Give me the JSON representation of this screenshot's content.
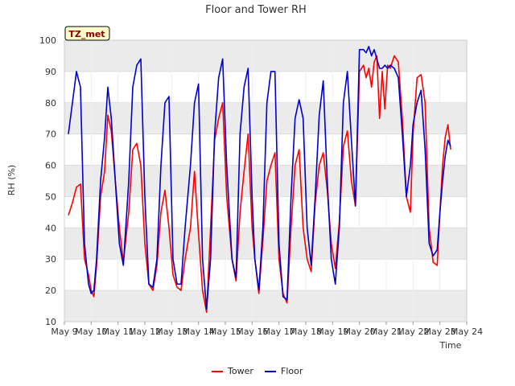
{
  "chart_data": {
    "type": "line",
    "title": "Floor and Tower RH",
    "xlabel": "Time",
    "ylabel": "RH (%)",
    "ylim": [
      10,
      100
    ],
    "y_ticks": [
      10,
      20,
      30,
      40,
      50,
      60,
      70,
      80,
      90,
      100
    ],
    "x_range_days": [
      0,
      15
    ],
    "x_ticks": [
      "May 9",
      "May 10",
      "May 11",
      "May 12",
      "May 13",
      "May 14",
      "May 15",
      "May 16",
      "May 17",
      "May 18",
      "May 19",
      "May 20",
      "May 21",
      "May 22",
      "May 23",
      "May 24"
    ],
    "grid": true,
    "legend_position": "bottom-center",
    "annotation": "TZ_met",
    "colors": {
      "Tower": "#ff0000",
      "Floor": "#0000cc",
      "band": "#ebebeb"
    },
    "series": [
      {
        "name": "Tower",
        "color": "#ff0000",
        "x": [
          0.15,
          0.3,
          0.45,
          0.6,
          0.75,
          0.9,
          1.0,
          1.1,
          1.2,
          1.35,
          1.5,
          1.62,
          1.75,
          1.9,
          2.05,
          2.2,
          2.4,
          2.55,
          2.7,
          2.85,
          3.0,
          3.15,
          3.3,
          3.45,
          3.6,
          3.75,
          3.9,
          4.05,
          4.2,
          4.35,
          4.5,
          4.7,
          4.85,
          5.0,
          5.15,
          5.3,
          5.45,
          5.6,
          5.75,
          5.9,
          6.05,
          6.25,
          6.4,
          6.55,
          6.7,
          6.85,
          7.0,
          7.1,
          7.25,
          7.4,
          7.55,
          7.7,
          7.85,
          8.0,
          8.15,
          8.3,
          8.45,
          8.6,
          8.75,
          8.9,
          9.05,
          9.2,
          9.35,
          9.5,
          9.65,
          9.8,
          9.95,
          10.1,
          10.25,
          10.4,
          10.55,
          10.7,
          10.85,
          11.0,
          11.15,
          11.25,
          11.35,
          11.45,
          11.55,
          11.65,
          11.75,
          11.85,
          11.95,
          12.05,
          12.15,
          12.3,
          12.45,
          12.6,
          12.75,
          12.9,
          13.0,
          13.15,
          13.3,
          13.45,
          13.6,
          13.75,
          13.9,
          14.0,
          14.1,
          14.2,
          14.3,
          14.4
        ],
        "values": [
          44,
          48,
          53,
          54,
          30,
          25,
          20,
          18,
          28,
          50,
          58,
          76,
          71,
          55,
          40,
          29,
          45,
          65,
          67,
          60,
          35,
          22,
          20,
          28,
          45,
          52,
          40,
          25,
          21,
          20,
          30,
          40,
          58,
          38,
          20,
          13,
          40,
          68,
          75,
          80,
          50,
          30,
          23,
          45,
          58,
          70,
          40,
          30,
          19,
          36,
          55,
          60,
          64,
          30,
          19,
          16,
          40,
          60,
          65,
          40,
          30,
          26,
          48,
          60,
          64,
          52,
          35,
          27,
          42,
          66,
          71,
          55,
          47,
          90,
          92,
          88,
          91,
          85,
          93,
          95,
          75,
          90,
          78,
          92,
          91,
          95,
          93,
          75,
          50,
          45,
          70,
          88,
          89,
          80,
          40,
          29,
          28,
          45,
          60,
          69,
          73,
          65
        ]
      },
      {
        "name": "Floor",
        "color": "#0000cc",
        "x": [
          0.15,
          0.3,
          0.45,
          0.6,
          0.75,
          0.9,
          1.0,
          1.1,
          1.2,
          1.35,
          1.5,
          1.62,
          1.75,
          1.9,
          2.05,
          2.2,
          2.4,
          2.55,
          2.7,
          2.85,
          3.0,
          3.15,
          3.3,
          3.45,
          3.6,
          3.75,
          3.9,
          4.05,
          4.2,
          4.35,
          4.5,
          4.7,
          4.85,
          5.0,
          5.15,
          5.3,
          5.45,
          5.6,
          5.75,
          5.9,
          6.05,
          6.25,
          6.4,
          6.55,
          6.7,
          6.85,
          7.0,
          7.1,
          7.25,
          7.4,
          7.55,
          7.7,
          7.85,
          8.0,
          8.15,
          8.3,
          8.45,
          8.6,
          8.75,
          8.9,
          9.05,
          9.2,
          9.35,
          9.5,
          9.65,
          9.8,
          9.95,
          10.1,
          10.25,
          10.4,
          10.55,
          10.7,
          10.85,
          11.0,
          11.15,
          11.25,
          11.35,
          11.45,
          11.55,
          11.65,
          11.75,
          11.85,
          11.95,
          12.05,
          12.15,
          12.3,
          12.45,
          12.6,
          12.75,
          12.9,
          13.0,
          13.15,
          13.3,
          13.45,
          13.6,
          13.75,
          13.9,
          14.0,
          14.1,
          14.2,
          14.3,
          14.4
        ],
        "values": [
          70,
          80,
          90,
          85,
          35,
          22,
          19,
          20,
          30,
          55,
          69,
          85,
          75,
          55,
          35,
          28,
          55,
          85,
          92,
          94,
          50,
          22,
          21,
          30,
          60,
          80,
          82,
          30,
          22,
          22,
          40,
          60,
          80,
          86,
          30,
          14,
          30,
          70,
          88,
          94,
          60,
          30,
          24,
          70,
          85,
          91,
          50,
          30,
          20,
          40,
          80,
          90,
          90,
          35,
          18,
          17,
          50,
          75,
          81,
          75,
          40,
          28,
          50,
          76,
          87,
          55,
          30,
          22,
          40,
          80,
          90,
          68,
          47,
          97,
          97,
          96,
          98,
          95,
          97,
          94,
          91,
          91,
          92,
          91,
          92,
          91,
          88,
          70,
          50,
          60,
          73,
          80,
          84,
          65,
          35,
          31,
          33,
          45,
          55,
          63,
          68,
          66
        ]
      }
    ]
  }
}
